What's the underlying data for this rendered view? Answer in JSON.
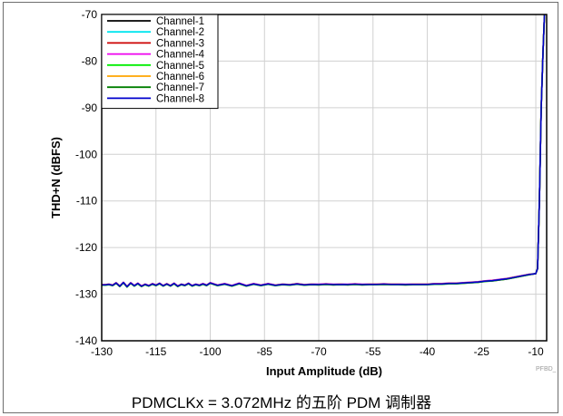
{
  "caption": "PDMCLKx = 3.072MHz 的五阶 PDM 调制器",
  "figure_id": "PFBD_",
  "chart_data": {
    "type": "line",
    "xlabel": "Input Amplitude (dB)",
    "ylabel": "THD+N (dBFS)",
    "xlim": [
      -130,
      -7
    ],
    "ylim": [
      -140,
      -70
    ],
    "xticks": [
      -130,
      -115,
      -100,
      -85,
      -70,
      -55,
      -40,
      -25,
      -10
    ],
    "yticks": [
      -70,
      -80,
      -90,
      -100,
      -110,
      -120,
      -130,
      -140
    ],
    "grid": true,
    "legend_position": "top-left",
    "x": [
      -130,
      -129,
      -128,
      -127,
      -126,
      -125,
      -124,
      -123,
      -122,
      -121,
      -120,
      -119,
      -118,
      -117,
      -116,
      -115,
      -114,
      -113,
      -112,
      -111,
      -110,
      -109,
      -108,
      -107,
      -106,
      -105,
      -104,
      -103,
      -102,
      -101,
      -100,
      -98,
      -96,
      -94,
      -92,
      -90,
      -88,
      -86,
      -84,
      -82,
      -80,
      -78,
      -76,
      -74,
      -72,
      -70,
      -68,
      -66,
      -64,
      -62,
      -60,
      -58,
      -56,
      -54,
      -52,
      -50,
      -48,
      -46,
      -44,
      -42,
      -40,
      -38,
      -36,
      -34,
      -32,
      -30,
      -28,
      -26,
      -24,
      -22,
      -20,
      -18,
      -16,
      -14,
      -12,
      -10,
      -9.5,
      -9,
      -8.5,
      -8,
      -7.6
    ],
    "series": [
      {
        "name": "Channel-1",
        "color": "#000000",
        "offset": 0.0
      },
      {
        "name": "Channel-2",
        "color": "#00e5ee",
        "offset": 0.05
      },
      {
        "name": "Channel-3",
        "color": "#cc0000",
        "offset": -0.05
      },
      {
        "name": "Channel-4",
        "color": "#ee00ee",
        "offset": 0.08
      },
      {
        "name": "Channel-5",
        "color": "#00ee00",
        "offset": -0.08
      },
      {
        "name": "Channel-6",
        "color": "#ffa500",
        "offset": 0.03
      },
      {
        "name": "Channel-7",
        "color": "#007f00",
        "offset": -0.03
      },
      {
        "name": "Channel-8",
        "color": "#0000cc",
        "offset": 0.0
      }
    ],
    "base_values": [
      -128,
      -128,
      -127.9,
      -128.1,
      -127.6,
      -128.3,
      -127.5,
      -128.4,
      -127.6,
      -128.2,
      -127.7,
      -128.3,
      -127.9,
      -128.2,
      -127.8,
      -128.1,
      -127.7,
      -128.2,
      -127.8,
      -128.2,
      -127.7,
      -128.3,
      -127.9,
      -128.1,
      -127.7,
      -128.2,
      -127.9,
      -128.1,
      -127.8,
      -128.1,
      -127.6,
      -128.1,
      -127.8,
      -128.2,
      -127.7,
      -128.2,
      -127.8,
      -128.1,
      -127.8,
      -128.1,
      -127.9,
      -128.0,
      -127.8,
      -128.0,
      -127.9,
      -127.95,
      -127.85,
      -127.95,
      -127.9,
      -127.95,
      -127.85,
      -127.95,
      -127.9,
      -127.9,
      -127.85,
      -127.9,
      -127.9,
      -127.95,
      -127.9,
      -127.9,
      -127.9,
      -127.8,
      -127.8,
      -127.7,
      -127.7,
      -127.6,
      -127.5,
      -127.4,
      -127.2,
      -127.1,
      -126.9,
      -126.7,
      -126.4,
      -126.1,
      -125.8,
      -125.6,
      -124.5,
      -110,
      -90,
      -78,
      -70
    ]
  }
}
